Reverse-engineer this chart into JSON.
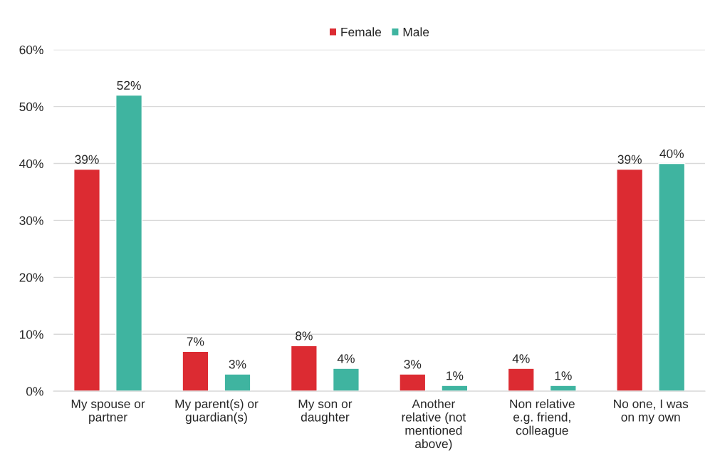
{
  "chart_data": {
    "type": "bar",
    "categories": [
      "My spouse or\npartner",
      "My parent(s) or\nguardian(s)",
      "My son or\ndaughter",
      "Another\nrelative (not\nmentioned\nabove)",
      "Non relative\ne.g. friend,\ncolleague",
      "No one, I was\non my own"
    ],
    "series": [
      {
        "name": "Female",
        "color": "#dc2b32",
        "values": [
          39,
          7,
          8,
          3,
          4,
          39
        ],
        "value_labels": [
          "39%",
          "7%",
          "8%",
          "3%",
          "4%",
          "39%"
        ]
      },
      {
        "name": "Male",
        "color": "#3fb4a0",
        "values": [
          52,
          3,
          4,
          1,
          1,
          40
        ],
        "value_labels": [
          "52%",
          "3%",
          "4%",
          "1%",
          "1%",
          "40%"
        ]
      }
    ],
    "ylim": [
      0,
      60
    ],
    "yticks": [
      {
        "value": 0,
        "label": "0%"
      },
      {
        "value": 10,
        "label": "10%"
      },
      {
        "value": 20,
        "label": "20%"
      },
      {
        "value": 30,
        "label": "30%"
      },
      {
        "value": 40,
        "label": "40%"
      },
      {
        "value": 50,
        "label": "50%"
      },
      {
        "value": 60,
        "label": "60%"
      }
    ],
    "grid": "y",
    "legend": "top"
  }
}
